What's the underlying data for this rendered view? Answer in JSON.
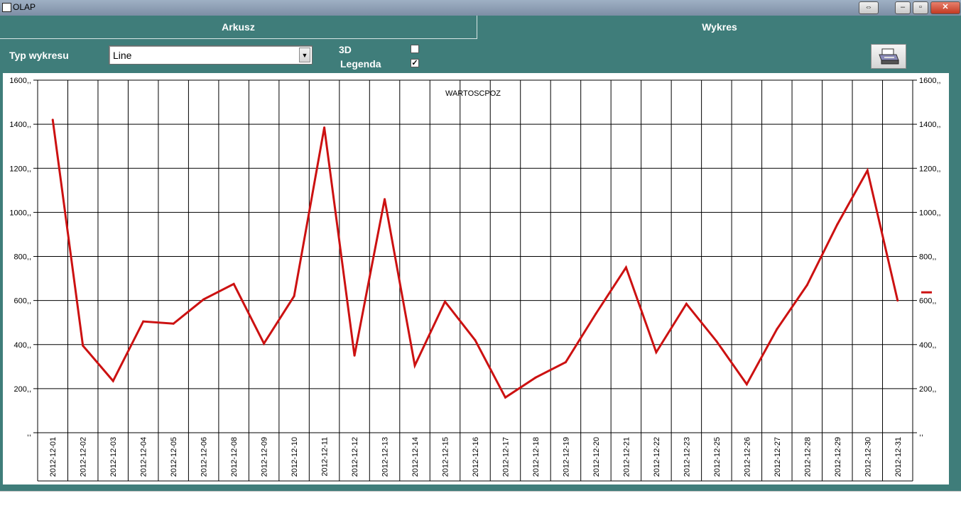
{
  "window": {
    "title": "OLAP"
  },
  "tabs": [
    {
      "label": "Arkusz"
    },
    {
      "label": "Wykres"
    }
  ],
  "controls": {
    "chart_type_label": "Typ wykresu",
    "chart_type_value": "Line",
    "three_d_label": "3D",
    "three_d_checked": false,
    "legend_label": "Legenda",
    "legend_checked": true
  },
  "chart_data": {
    "type": "line",
    "title": "WARTOSCPOZ",
    "categories": [
      "2012-12-01",
      "2012-12-02",
      "2012-12-03",
      "2012-12-04",
      "2012-12-05",
      "2012-12-06",
      "2012-12-08",
      "2012-12-09",
      "2012-12-10",
      "2012-12-11",
      "2012-12-12",
      "2012-12-13",
      "2012-12-14",
      "2012-12-15",
      "2012-12-16",
      "2012-12-17",
      "2012-12-18",
      "2012-12-19",
      "2012-12-20",
      "2012-12-21",
      "2012-12-22",
      "2012-12-23",
      "2012-12-25",
      "2012-12-26",
      "2012-12-27",
      "2012-12-28",
      "2012-12-29",
      "2012-12-30",
      "2012-12-31"
    ],
    "series": [
      {
        "values": [
          1420,
          395,
          235,
          505,
          495,
          605,
          675,
          405,
          620,
          1385,
          350,
          1060,
          305,
          595,
          420,
          160,
          250,
          320,
          540,
          750,
          365,
          585,
          415,
          220,
          470,
          670,
          945,
          1190,
          600
        ]
      }
    ],
    "ylim": [
      0,
      1600
    ],
    "yticks": [
      {
        "value": 0,
        "label": ",,"
      },
      {
        "value": 200,
        "label": "200,,"
      },
      {
        "value": 400,
        "label": "400,,"
      },
      {
        "value": 600,
        "label": "600,,"
      },
      {
        "value": 800,
        "label": "800,,"
      },
      {
        "value": 1000,
        "label": "1000,,"
      },
      {
        "value": 1200,
        "label": "1200,,"
      },
      {
        "value": 1400,
        "label": "1400,,"
      },
      {
        "value": 1600,
        "label": "1600,,"
      }
    ],
    "line_color": "#cc1111",
    "grid": true,
    "legend_placement": "right"
  }
}
